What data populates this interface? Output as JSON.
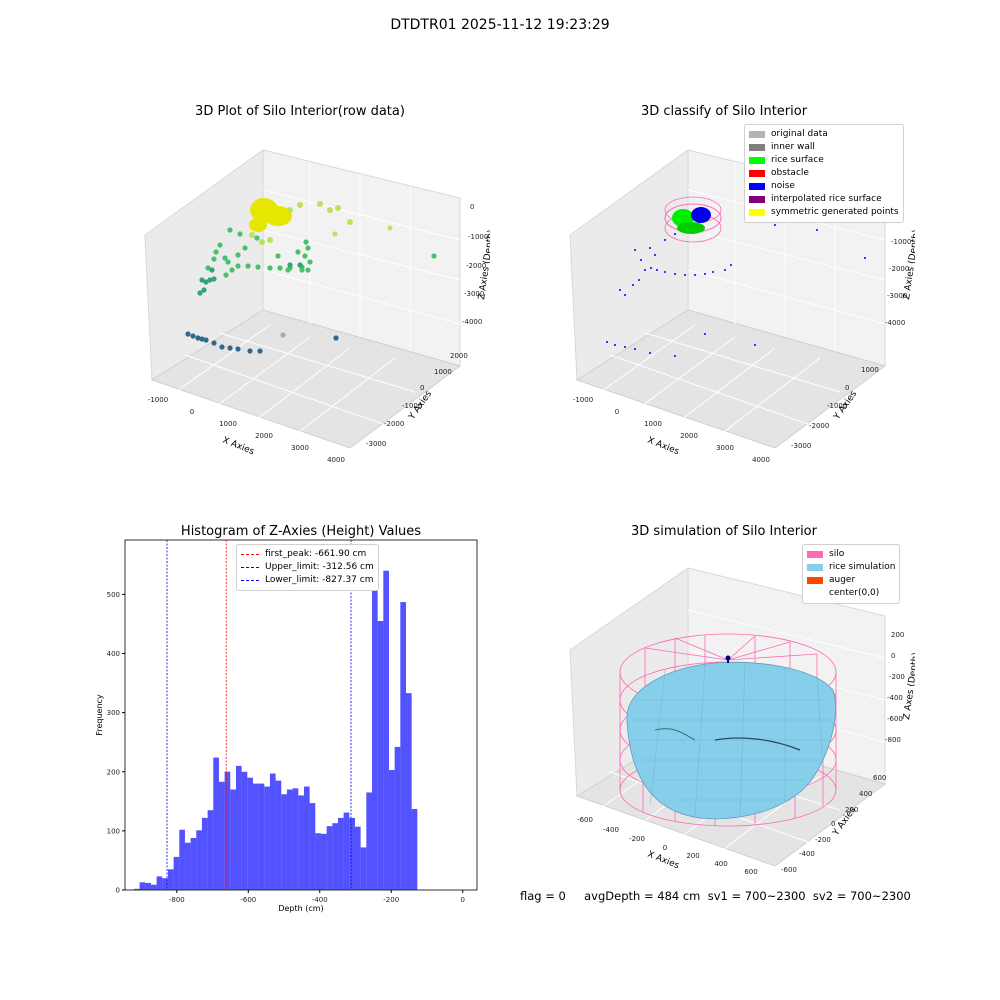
{
  "figure": {
    "title": "DTDTR01 2025-11-12 19:23:29",
    "footer": "flag = 0     avgDepth = 484 cm  sv1 = 700~2300  sv2 = 700~2300"
  },
  "panels": {
    "raw": {
      "title": "3D Plot of Silo Interior(row data)",
      "xlabel": "X Axies",
      "ylabel": "Y Axies",
      "zlabel": "Z Axies (Depth)",
      "xticks": [
        "-1000",
        "0",
        "1000",
        "2000",
        "3000",
        "4000"
      ],
      "yticks": [
        "2000",
        "1000",
        "0",
        "-1000",
        "-2000",
        "-3000"
      ],
      "zticks": [
        "0",
        "-1000",
        "-2000",
        "-3000",
        "-4000"
      ]
    },
    "classify": {
      "title": "3D classify of Silo Interior",
      "xlabel": "X Axies",
      "ylabel": "Y Axies",
      "zlabel": "Z Axies (Depth)",
      "xticks": [
        "-1000",
        "0",
        "1000",
        "2000",
        "3000",
        "4000"
      ],
      "yticks": [
        "1000",
        "0",
        "-1000",
        "-2000",
        "-3000"
      ],
      "zticks": [
        "0",
        "-1000",
        "-2000",
        "-3000",
        "-4000"
      ],
      "legend": [
        {
          "label": "original data",
          "color": "#b3b3b3"
        },
        {
          "label": "inner wall",
          "color": "#808080"
        },
        {
          "label": "rice surface",
          "color": "#00ff00"
        },
        {
          "label": "obstacle",
          "color": "#ff0000"
        },
        {
          "label": "noise",
          "color": "#0000ff"
        },
        {
          "label": "interpolated rice surface",
          "color": "#800080"
        },
        {
          "label": "symmetric generated points",
          "color": "#ffff00"
        }
      ]
    },
    "histogram": {
      "title": "Histogram of Z-Axies (Height) Values",
      "xlabel": "Depth (cm)",
      "ylabel": "Frequency",
      "legend": [
        {
          "label": "first_peak: -661.90 cm",
          "color": "#ff0000"
        },
        {
          "label": "Upper_limit: -312.56 cm",
          "color": "#0000ff"
        },
        {
          "label": "Lower_limit: -827.37 cm",
          "color": "#0000ff"
        }
      ]
    },
    "simulation": {
      "title": "3D simulation of Silo Interior",
      "xlabel": "X Axies",
      "ylabel": "Y Axies",
      "zlabel": "Z Axes (Depth)",
      "xticks": [
        "-600",
        "-400",
        "-200",
        "0",
        "200",
        "400",
        "600"
      ],
      "yticks": [
        "600",
        "400",
        "200",
        "0",
        "-200",
        "-400",
        "-600"
      ],
      "zticks": [
        "200",
        "0",
        "-200",
        "-400",
        "-600",
        "-800"
      ],
      "legend": [
        {
          "label": "silo",
          "color": "#ff69b4"
        },
        {
          "label": "rice simulation",
          "color": "#87ceeb"
        },
        {
          "label": "auger",
          "color": "#ff4500"
        },
        {
          "label": "center(0,0)",
          "color": ""
        }
      ]
    }
  },
  "chart_data": [
    {
      "type": "histogram",
      "title": "Histogram of Z-Axies (Height) Values",
      "xlabel": "Depth (cm)",
      "ylabel": "Frequency",
      "xlim": [
        -945,
        40
      ],
      "ylim": [
        0,
        592
      ],
      "xticks": [
        -800,
        -600,
        -400,
        -200,
        0
      ],
      "yticks": [
        0,
        100,
        200,
        300,
        400,
        500
      ],
      "bin_start": -920,
      "bin_width": 15.86,
      "counts": [
        2,
        13,
        12,
        9,
        23,
        20,
        35,
        56,
        102,
        80,
        88,
        101,
        122,
        135,
        224,
        183,
        200,
        170,
        210,
        200,
        190,
        180,
        180,
        175,
        197,
        185,
        162,
        170,
        172,
        160,
        175,
        147,
        96,
        95,
        108,
        113,
        122,
        131,
        122,
        107,
        72,
        165,
        565,
        455,
        540,
        203,
        242,
        487,
        333,
        137
      ],
      "color": "#0000ff",
      "vlines": [
        {
          "label": "first_peak: -661.90 cm",
          "x": -661.9,
          "color": "#ff0000"
        },
        {
          "label": "Upper_limit: -312.56 cm",
          "x": -312.56,
          "color": "#0000ff"
        },
        {
          "label": "Lower_limit: -827.37 cm",
          "x": -827.37,
          "color": "#0000ff"
        }
      ],
      "legend_position": "upper-center"
    }
  ]
}
